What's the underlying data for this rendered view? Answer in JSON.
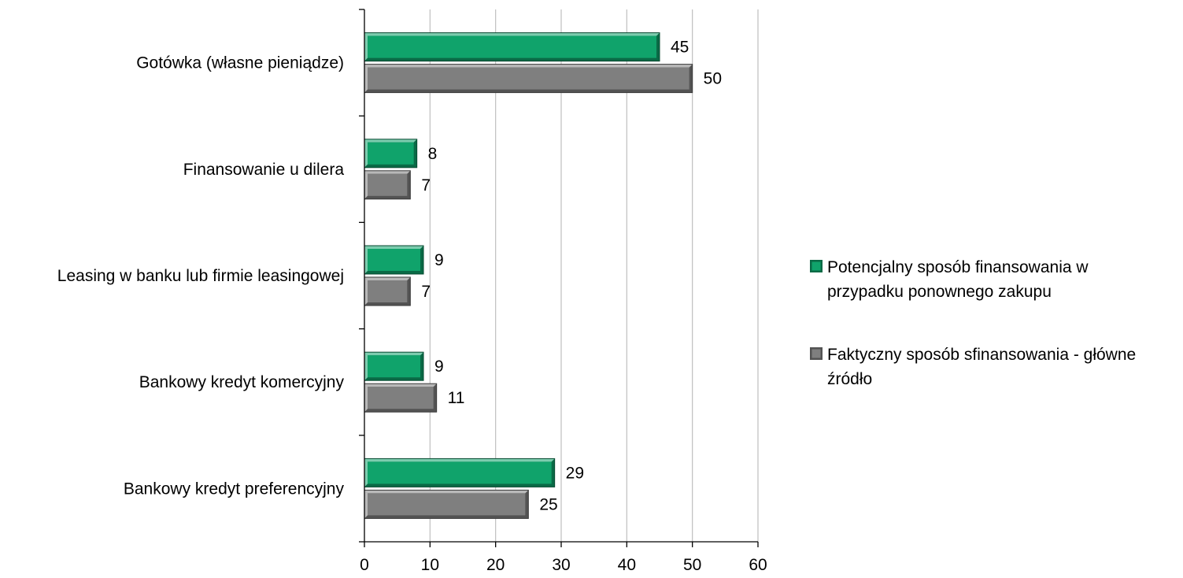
{
  "chart_data": {
    "type": "bar",
    "orientation": "horizontal",
    "categories": [
      "Gotówka (własne pieniądze)",
      "Finansowanie u dilera",
      "Leasing w banku lub firmie leasingowej",
      "Bankowy kredyt komercyjny",
      "Bankowy kredyt preferencyjny"
    ],
    "series": [
      {
        "name": "Potencjalny sposób finansowania w przypadku ponownego zakupu",
        "legend_lines": [
          "Potencjalny sposób finansowania w",
          "przypadku ponownego zakupu"
        ],
        "color": "#10a36b",
        "values": [
          45,
          8,
          9,
          9,
          29
        ]
      },
      {
        "name": "Faktyczny sposób sfinansowania - główne źródło",
        "legend_lines": [
          "Faktyczny sposób sfinansowania - główne",
          "źródło"
        ],
        "color": "#7f7f7f",
        "values": [
          50,
          7,
          7,
          11,
          25
        ]
      }
    ],
    "xlim": [
      0,
      60
    ],
    "xticks": [
      0,
      10,
      20,
      30,
      40,
      50,
      60
    ],
    "grid": "vertical",
    "legend_position": "right",
    "title": "",
    "xlabel": "",
    "ylabel": ""
  }
}
